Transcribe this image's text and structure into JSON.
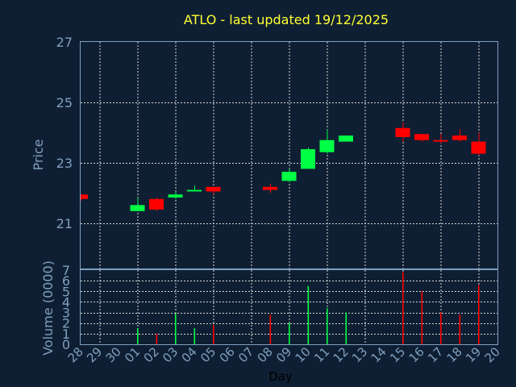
{
  "chart_data": {
    "type": "candlestick",
    "title": "ATLO - last updated 19/12/2025",
    "xlabel": "Day",
    "ylabel_price": "Price",
    "ylabel_volume": "Volume (0000)",
    "x": [
      "28",
      "29",
      "30",
      "01",
      "02",
      "03",
      "04",
      "05",
      "06",
      "07",
      "08",
      "09",
      "10",
      "11",
      "12",
      "13",
      "14",
      "15",
      "16",
      "17",
      "18",
      "19",
      "20"
    ],
    "price_ylim": [
      19.5,
      27
    ],
    "price_ticks": [
      21,
      23,
      25,
      27
    ],
    "volume_ylim": [
      0,
      7
    ],
    "volume_ticks": [
      0,
      1,
      2,
      3,
      4,
      5,
      6,
      7
    ],
    "grid": true,
    "colors": {
      "up": "#00ff44",
      "down": "#ff0000",
      "title": "#ffff33",
      "axis": "#7f9fbf",
      "background": "#0f1f33"
    },
    "candles": [
      {
        "day": "28",
        "open": 21.95,
        "high": 21.95,
        "low": 21.75,
        "close": 21.8,
        "volume": 0
      },
      {
        "day": "01",
        "open": 21.4,
        "high": 21.85,
        "low": 21.4,
        "close": 21.6,
        "volume": 1.5
      },
      {
        "day": "02",
        "open": 21.8,
        "high": 21.85,
        "low": 21.4,
        "close": 21.45,
        "volume": 1.0
      },
      {
        "day": "03",
        "open": 21.85,
        "high": 22.05,
        "low": 21.8,
        "close": 21.95,
        "volume": 2.9
      },
      {
        "day": "04",
        "open": 22.05,
        "high": 22.25,
        "low": 22.05,
        "close": 22.1,
        "volume": 1.5
      },
      {
        "day": "05",
        "open": 22.2,
        "high": 22.2,
        "low": 21.95,
        "close": 22.05,
        "volume": 1.8
      },
      {
        "day": "08",
        "open": 22.2,
        "high": 22.3,
        "low": 22.0,
        "close": 22.1,
        "volume": 2.8
      },
      {
        "day": "09",
        "open": 22.4,
        "high": 22.8,
        "low": 22.35,
        "close": 22.7,
        "volume": 2.0
      },
      {
        "day": "10",
        "open": 22.8,
        "high": 23.5,
        "low": 22.8,
        "close": 23.45,
        "volume": 5.5
      },
      {
        "day": "11",
        "open": 23.35,
        "high": 24.1,
        "low": 23.3,
        "close": 23.75,
        "volume": 3.4
      },
      {
        "day": "12",
        "open": 23.7,
        "high": 23.9,
        "low": 23.7,
        "close": 23.9,
        "volume": 3.0
      },
      {
        "day": "15",
        "open": 24.15,
        "high": 24.35,
        "low": 23.7,
        "close": 23.85,
        "volume": 6.8
      },
      {
        "day": "16",
        "open": 23.95,
        "high": 23.95,
        "low": 23.7,
        "close": 23.75,
        "volume": 5.0
      },
      {
        "day": "17",
        "open": 23.75,
        "high": 23.95,
        "low": 23.65,
        "close": 23.7,
        "volume": 3.0
      },
      {
        "day": "18",
        "open": 23.9,
        "high": 24.1,
        "low": 23.7,
        "close": 23.75,
        "volume": 2.8
      },
      {
        "day": "19",
        "open": 23.7,
        "high": 24.0,
        "low": 23.25,
        "close": 23.3,
        "volume": 5.6
      }
    ]
  }
}
